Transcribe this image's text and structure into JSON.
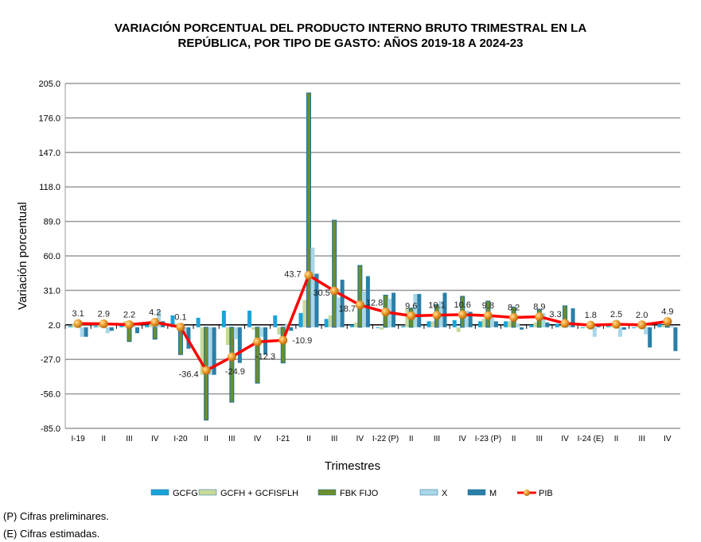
{
  "chart_data": {
    "type": "bar",
    "title_line1": "VARIACIÓN PORCENTUAL DEL PRODUCTO INTERNO BRUTO TRIMESTRAL EN LA",
    "title_line2": "REPÚBLICA, POR TIPO DE GASTO: AÑOS 2019-18 A 2024-23",
    "xlabel": "Trimestres",
    "ylabel": "Variación porcentual",
    "ylim": [
      -85,
      205
    ],
    "yticks": [
      "205.0",
      "176.0",
      "147.0",
      "118.0",
      "89.0",
      "60.0",
      "31.0",
      "2.0",
      "-27.0",
      "-56.0",
      "-85.0"
    ],
    "ytick_values": [
      205,
      176,
      147,
      118,
      89,
      60,
      31,
      2,
      -27,
      -56,
      -85
    ],
    "categories": [
      "I-19",
      "II",
      "III",
      "IV",
      "I-20",
      "II",
      "III",
      "IV",
      "I-21",
      "II",
      "III",
      "IV",
      "I-22 (P)",
      "II",
      "III",
      "IV",
      "I-23 (P)",
      "II",
      "III",
      "IV",
      "I-24 (E)",
      "II",
      "III",
      "IV"
    ],
    "series": [
      {
        "name": "GCFG",
        "type": "bar",
        "color": "#1aa3d9",
        "values": [
          1,
          1,
          2,
          2,
          10,
          8,
          14,
          14,
          10,
          12,
          7,
          2,
          0,
          1,
          5,
          6,
          5,
          5,
          2,
          3,
          0,
          1,
          0,
          3
        ]
      },
      {
        "name": "GCFH + GCFISFLH",
        "type": "bar",
        "color": "#c8d99a",
        "values": [
          3,
          3,
          5,
          5,
          3,
          -40,
          -15,
          -2,
          -6,
          23,
          10,
          4,
          -2,
          16,
          5,
          -4,
          7,
          5,
          4,
          1,
          0,
          2,
          1,
          2
        ]
      },
      {
        "name": "FBK FIJO",
        "type": "bar",
        "color": "#6b8e2e",
        "values": [
          3,
          3,
          -12,
          -10,
          -23,
          -78,
          -63,
          -47,
          -30,
          197,
          90,
          52,
          27,
          16,
          19,
          26,
          22,
          17,
          15,
          18,
          0,
          3,
          1,
          3
        ]
      },
      {
        "name": "X",
        "type": "bar",
        "color": "#a9d6e8",
        "values": [
          -8,
          -5,
          2,
          14,
          -5,
          -40,
          -10,
          -8,
          3,
          67,
          25,
          30,
          24,
          28,
          22,
          14,
          8,
          3,
          12,
          2,
          -8,
          -8,
          -6,
          1
        ]
      },
      {
        "name": "M",
        "type": "bar",
        "color": "#2a7fa8",
        "values": [
          -8,
          -3,
          -5,
          5,
          -18,
          -40,
          -30,
          -23,
          -3,
          45,
          40,
          43,
          29,
          28,
          29,
          13,
          5,
          -2,
          4,
          16,
          1,
          -2,
          -17,
          -20
        ]
      },
      {
        "name": "PIB",
        "type": "line",
        "color": "#ff0000",
        "values": [
          3.1,
          2.9,
          2.2,
          4.2,
          0.1,
          -36.4,
          -24.9,
          -12.3,
          -10.9,
          43.7,
          30.5,
          18.7,
          12.8,
          9.6,
          10.1,
          10.6,
          9.8,
          8.2,
          8.9,
          3.3,
          1.8,
          2.5,
          2.0,
          4.9
        ],
        "labels": [
          "3.1",
          "2.9",
          "2.2",
          "4.2",
          "0.1",
          "-36.4",
          "-24.9",
          "-12.3",
          "-10.9",
          "43.7",
          "30.5",
          "18.7",
          "12.8",
          "9.6",
          "10.1",
          "10.6",
          "9.8",
          "8.2",
          "8.9",
          "3.3",
          "1.8",
          "2.5",
          "2.0",
          "4.9"
        ]
      }
    ],
    "legend": "bottom",
    "grid": true
  },
  "footnotes": [
    "(P) Cifras preliminares.",
    "(E) Cifras estimadas."
  ]
}
